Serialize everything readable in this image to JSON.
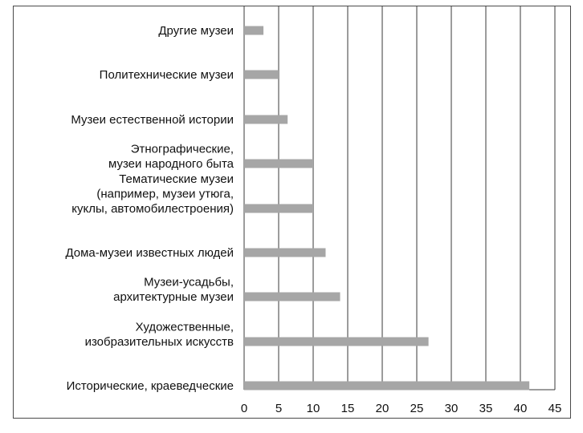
{
  "chart_data": {
    "type": "bar",
    "orientation": "horizontal",
    "categories": [
      "Другие музеи",
      "Политехнические музеи",
      "Музеи естественной истории",
      "Этнографические,\nмузеи народного быта",
      "Тематические музеи\n(например, музеи утюга,\nкуклы, автомобилестроения)",
      "Дома-музеи известных людей",
      "Музеи-усадьбы,\nархитектурные музеи",
      "Художественные,\nизобразительных искусств",
      "Исторические, краеведческие"
    ],
    "values": [
      2.8,
      5,
      6.3,
      10,
      10,
      11.8,
      13.9,
      26.7,
      41.3
    ],
    "x_ticks": [
      "0",
      "5",
      "10",
      "15",
      "20",
      "25",
      "30",
      "35",
      "40",
      "45"
    ],
    "xlim": [
      0,
      45
    ],
    "grid": true,
    "bar_color": "#a6a6a6",
    "grid_color": "#3a3a3a"
  }
}
